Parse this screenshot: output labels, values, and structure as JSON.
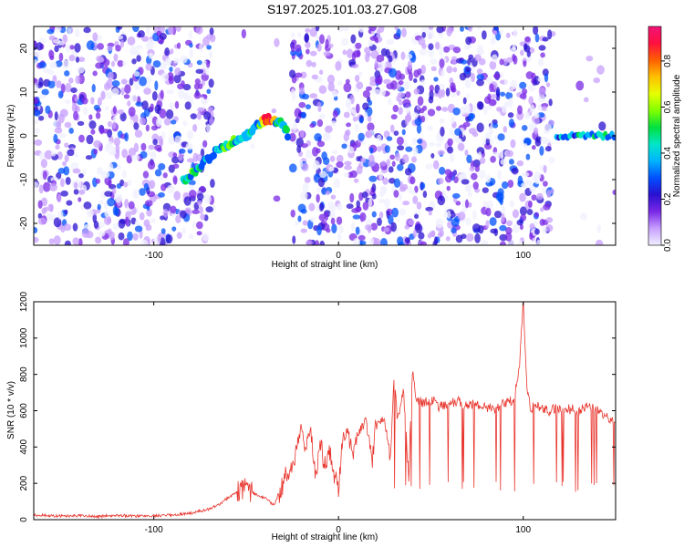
{
  "title": "S197.2025.101.03.27.G08",
  "colors": {
    "snr_line": "#e8342c",
    "colorbar": [
      "#f0f0ff",
      "#c8a0ff",
      "#7a28e6",
      "#2a10d0",
      "#0050ff",
      "#00b4ff",
      "#00e6c8",
      "#00e040",
      "#80ff00",
      "#e6ff00",
      "#ffc000",
      "#ff6000",
      "#ff1040",
      "#f01478"
    ]
  },
  "chart_data": [
    {
      "type": "heatmap",
      "title": "S197.2025.101.03.27.G08",
      "xlabel": "Height of straight line (km)",
      "ylabel": "Frequency (Hz)",
      "xlim": [
        -165,
        150
      ],
      "ylim": [
        -25,
        25
      ],
      "x_ticks": [
        "-100",
        "0",
        "100"
      ],
      "x_tick_values": [
        -100,
        0,
        100
      ],
      "y_ticks": [
        "-20",
        "-10",
        "0",
        "10",
        "20"
      ],
      "y_tick_values": [
        -20,
        -10,
        0,
        10,
        20
      ],
      "colorbar": {
        "label": "Normalized spectral amplitude",
        "ticks": [
          "0.0",
          "0.2",
          "0.4",
          "0.6",
          "0.8"
        ],
        "tick_values": [
          0.0,
          0.2,
          0.4,
          0.6,
          0.8
        ],
        "range": [
          0,
          0.95
        ]
      },
      "features": [
        {
          "name": "noise_background",
          "x_range": [
            -165,
            150
          ],
          "y_range": [
            -25,
            25
          ],
          "amplitude": 0.15
        },
        {
          "name": "arc_track",
          "points": [
            [
              -84,
              -10
            ],
            [
              -80,
              -9
            ],
            [
              -75,
              -7
            ],
            [
              -70,
              -5
            ],
            [
              -65,
              -3
            ],
            [
              -60,
              -2
            ],
            [
              -55,
              -1
            ],
            [
              -50,
              0
            ],
            [
              -46,
              1.5
            ],
            [
              -42,
              3
            ],
            [
              -38,
              4
            ],
            [
              -34,
              3.5
            ],
            [
              -30,
              2.5
            ],
            [
              -27,
              0
            ]
          ],
          "amplitude": 0.9
        },
        {
          "name": "signal_track",
          "x_range": [
            118,
            150
          ],
          "y": 0,
          "amplitude": 0.45
        },
        {
          "name": "gap",
          "x_range": [
            -68,
            -25
          ],
          "description_level": 0
        }
      ]
    },
    {
      "type": "line",
      "xlabel": "Height of straight line (km)",
      "ylabel": "SNR (10 * v/v)",
      "xlim": [
        -165,
        150
      ],
      "ylim": [
        0,
        1200
      ],
      "x_ticks": [
        "-100",
        "0",
        "100"
      ],
      "x_tick_values": [
        -100,
        0,
        100
      ],
      "y_ticks": [
        "0",
        "200",
        "400",
        "600",
        "800",
        "1000",
        "1200"
      ],
      "y_tick_values": [
        0,
        200,
        400,
        600,
        800,
        1000,
        1200
      ],
      "series": [
        {
          "x": [
            -165,
            -150,
            -140,
            -130,
            -120,
            -110,
            -100,
            -90,
            -80,
            -70,
            -65,
            -60,
            -55,
            -50,
            -45,
            -40,
            -35,
            -30,
            -28,
            -25,
            -22,
            -20,
            -18,
            -15,
            -12,
            -10,
            -8,
            -5,
            -2,
            0,
            2,
            5,
            8,
            10,
            15,
            18,
            20,
            25,
            28,
            30,
            32,
            35,
            38,
            40,
            42,
            45,
            50,
            55,
            60,
            65,
            70,
            75,
            80,
            85,
            90,
            95,
            98,
            100,
            102,
            104,
            106,
            108,
            110,
            115,
            120,
            125,
            130,
            135,
            140,
            145,
            150
          ],
          "y": [
            25,
            20,
            22,
            18,
            24,
            20,
            22,
            25,
            35,
            60,
            80,
            120,
            150,
            170,
            140,
            120,
            80,
            200,
            260,
            300,
            420,
            520,
            360,
            480,
            200,
            460,
            300,
            380,
            240,
            180,
            430,
            500,
            350,
            470,
            540,
            300,
            520,
            560,
            320,
            780,
            540,
            720,
            250,
            820,
            680,
            640,
            660,
            620,
            640,
            650,
            630,
            640,
            620,
            600,
            640,
            660,
            860,
            1200,
            720,
            600,
            640,
            620,
            610,
            600,
            620,
            610,
            600,
            620,
            600,
            560,
            540
          ]
        }
      ]
    }
  ]
}
